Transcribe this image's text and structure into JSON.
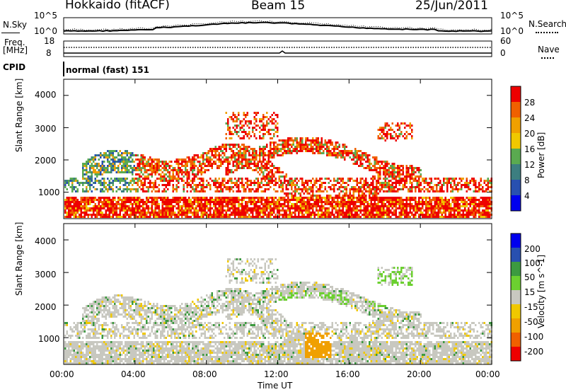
{
  "header": {
    "site": "Hokkaido (fitACF)",
    "beam": "Beam 15",
    "date": "25/Jun/2011"
  },
  "noise_panel": {
    "left_label": "N.Sky",
    "right_label": "N.Search",
    "left_ticks": [
      "10^5",
      "10^0"
    ],
    "right_ticks": [
      "10^5",
      "10^0"
    ]
  },
  "freq_panel": {
    "left_label_line1": "Freq.",
    "left_label_line2": "[MHz]",
    "left_ticks": [
      "18",
      "8"
    ],
    "right_label": "Nave",
    "right_ticks": [
      "60",
      "0"
    ]
  },
  "cpid_panel": {
    "label": "CPID",
    "value": "normal (fast) 151"
  },
  "x_axis": {
    "label": "Time UT",
    "ticks": [
      "00:00",
      "04:00",
      "08:00",
      "12:00",
      "16:00",
      "20:00",
      "00:00"
    ]
  },
  "colors": {
    "power": [
      "#0000ee",
      "#2850b0",
      "#3c7e80",
      "#5aaa50",
      "#f0c800",
      "#f0a000",
      "#f06000",
      "#ee0000"
    ],
    "velocity": [
      "#ee0000",
      "#f06000",
      "#f0a000",
      "#f0c800",
      "#c8c8c0",
      "#6cd030",
      "#3c9a40",
      "#2850b0",
      "#0000ee"
    ]
  },
  "chart_data": [
    {
      "type": "heatmap",
      "title": "",
      "xlabel": "",
      "ylabel": "Slant Range [km]",
      "xlim": [
        0,
        24
      ],
      "ylim": [
        180,
        4500
      ],
      "yticks": [
        "1000",
        "2000",
        "3000",
        "4000"
      ],
      "colorbar_label": "Power [dB]",
      "colorbar_ticks": [
        "4",
        "8",
        "12",
        "16",
        "20",
        "24",
        "28"
      ],
      "bands": [
        {
          "name": "near_range",
          "x": [
            0,
            24
          ],
          "y": [
            250,
            900
          ],
          "level": "high"
        },
        {
          "name": "main_echo",
          "x": [
            1,
            20
          ],
          "y": [
            1000,
            2800
          ],
          "level": "high"
        },
        {
          "name": "sporadic",
          "x": [
            9,
            12
          ],
          "y": [
            2800,
            3500
          ],
          "level": "medium"
        }
      ]
    },
    {
      "type": "heatmap",
      "title": "",
      "xlabel": "Time UT",
      "ylabel": "Slant Range [km]",
      "xlim": [
        0,
        24
      ],
      "ylim": [
        180,
        4500
      ],
      "yticks": [
        "1000",
        "2000",
        "3000",
        "4000"
      ],
      "colorbar_label": "Velocity [m s^-1]",
      "colorbar_ticks": [
        "200",
        "100",
        "50",
        "15",
        "-15",
        "-50",
        "-100",
        "-200"
      ],
      "bands": [
        {
          "name": "ground_scatter",
          "x": [
            0,
            24
          ],
          "y": [
            250,
            1400
          ],
          "level": "low-velocity"
        },
        {
          "name": "ionospheric",
          "x": [
            8,
            21
          ],
          "y": [
            1800,
            3000
          ],
          "level": "positive"
        },
        {
          "name": "negative_patch",
          "x": [
            13.5,
            15
          ],
          "y": [
            400,
            1200
          ],
          "level": "negative"
        }
      ]
    }
  ]
}
